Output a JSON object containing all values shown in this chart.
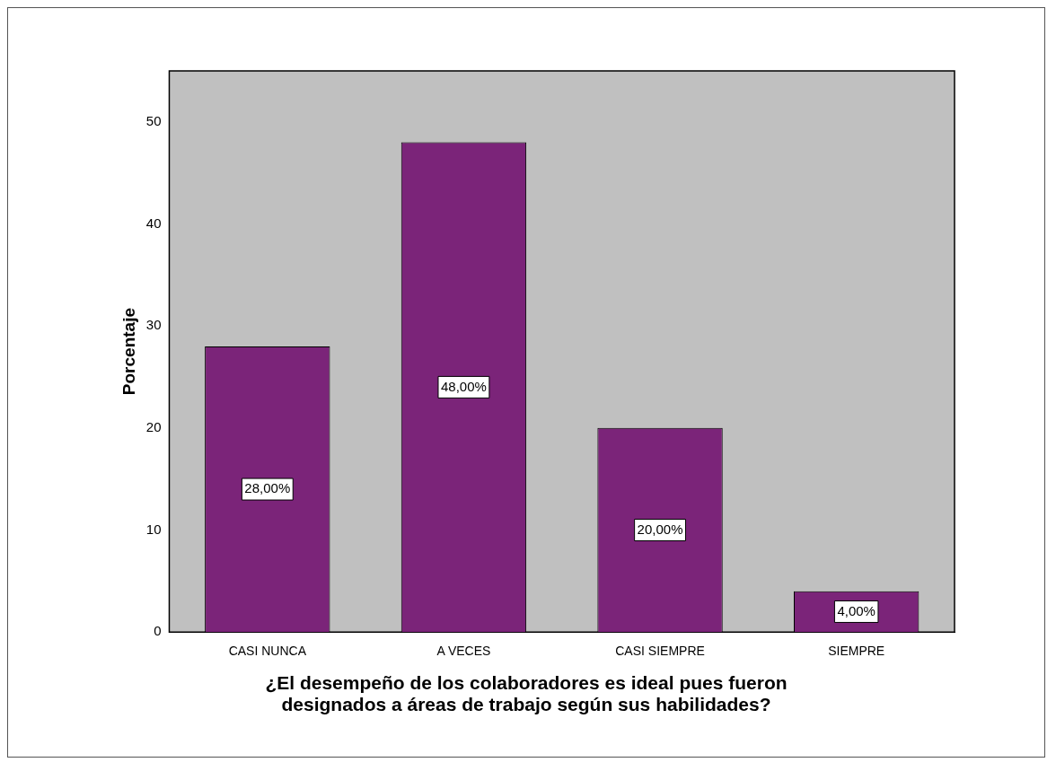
{
  "chart_data": {
    "type": "bar",
    "xlabel": "¿El desempeño de los colaboradores es ideal pues fueron designados a áreas de trabajo según sus habilidades?",
    "ylabel": "Porcentaje",
    "categories": [
      "CASI NUNCA",
      "A VECES",
      "CASI SIEMPRE",
      "SIEMPRE"
    ],
    "values": [
      28,
      48,
      20,
      4
    ],
    "value_labels": [
      "28,00%",
      "48,00%",
      "20,00%",
      "4,00%"
    ],
    "color": "#7b2479",
    "ylim": [
      0,
      55
    ],
    "yticks": [
      0,
      10,
      20,
      30,
      40,
      50
    ],
    "grid": false,
    "legend": false
  }
}
